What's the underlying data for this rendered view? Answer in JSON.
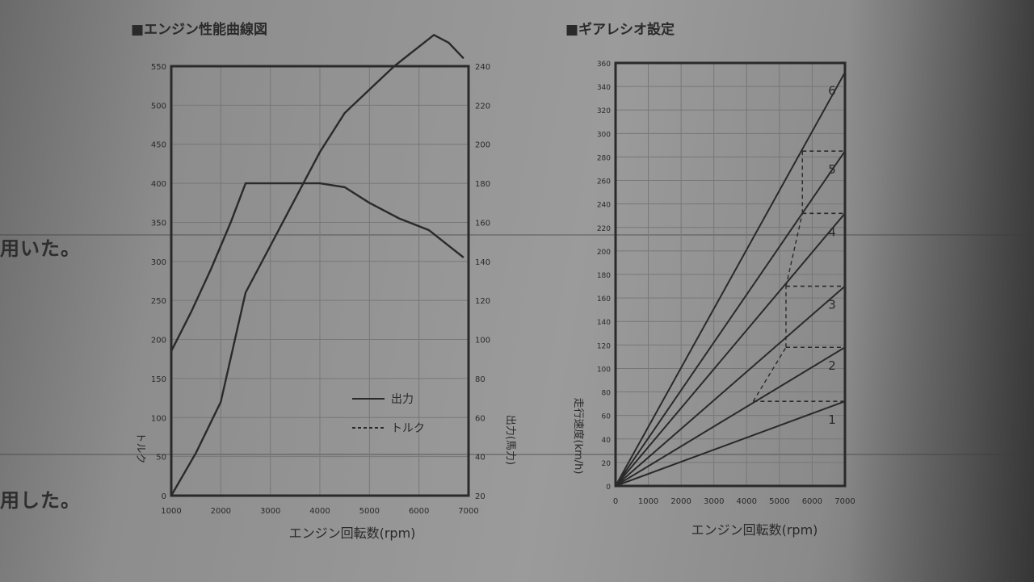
{
  "body_text": {
    "line1": "用いた。",
    "line2": "用した。"
  },
  "chart_data": [
    {
      "type": "line",
      "title": "■エンジン性能曲線図",
      "xlabel": "エンジン回転数(rpm)",
      "x_ticks": [
        "1000",
        "2000",
        "3000",
        "4000",
        "5000",
        "6000",
        "7000"
      ],
      "xlim": [
        1000,
        7000
      ],
      "y_left_ticks": [
        "0",
        "50",
        "100",
        "150",
        "200",
        "250",
        "300",
        "350",
        "400",
        "450",
        "500",
        "550"
      ],
      "ylim_left": [
        0,
        550
      ],
      "y_right_ticks": [
        "20",
        "40",
        "60",
        "80",
        "100",
        "120",
        "140",
        "160",
        "180",
        "200",
        "220",
        "240"
      ],
      "ylim_right": [
        20,
        240
      ],
      "ylabel_left": "トルク",
      "ylabel_right": "出力(馬力)",
      "grid": true,
      "legend_position": "bottom-right",
      "series": [
        {
          "name": "出力",
          "style": "solid",
          "axis": "left",
          "x": [
            1000,
            1500,
            2000,
            2500,
            3000,
            3500,
            4000,
            4500,
            5000,
            5500,
            6000,
            6300,
            6600,
            6900
          ],
          "y": [
            0,
            55,
            120,
            260,
            320,
            380,
            440,
            490,
            520,
            550,
            575,
            590,
            580,
            560
          ]
        },
        {
          "name": "トルク",
          "style": "dashed",
          "axis": "left",
          "x": [
            1000,
            1400,
            1800,
            2200,
            2500,
            3000,
            4000,
            4500,
            5000,
            5600,
            6200,
            6700,
            6900
          ],
          "y": [
            185,
            235,
            290,
            350,
            400,
            400,
            400,
            395,
            375,
            355,
            340,
            315,
            305
          ]
        }
      ]
    },
    {
      "type": "line",
      "title": "■ギアレシオ設定",
      "xlabel": "エンジン回転数(rpm)",
      "x_ticks": [
        "0",
        "1000",
        "2000",
        "3000",
        "4000",
        "5000",
        "6000",
        "7000"
      ],
      "xlim": [
        0,
        7000
      ],
      "y_ticks": [
        "0",
        "20",
        "40",
        "60",
        "80",
        "100",
        "120",
        "140",
        "160",
        "180",
        "200",
        "220",
        "240",
        "260",
        "280",
        "300",
        "320",
        "340",
        "360"
      ],
      "ylim": [
        0,
        360
      ],
      "ylabel": "走行速度(km/h)",
      "grid": true,
      "series": [
        {
          "name": "1",
          "x": [
            0,
            7000
          ],
          "y": [
            0,
            72
          ]
        },
        {
          "name": "2",
          "x": [
            0,
            7000
          ],
          "y": [
            0,
            118
          ]
        },
        {
          "name": "3",
          "x": [
            0,
            7000
          ],
          "y": [
            0,
            170
          ]
        },
        {
          "name": "4",
          "x": [
            0,
            7000
          ],
          "y": [
            0,
            232
          ]
        },
        {
          "name": "5",
          "x": [
            0,
            7000
          ],
          "y": [
            0,
            285
          ]
        },
        {
          "name": "6",
          "x": [
            0,
            7000
          ],
          "y": [
            0,
            352
          ]
        }
      ],
      "shift_steps": [
        {
          "from_x": 4200,
          "to_x": 7000,
          "y": 72
        },
        {
          "from_x": 5200,
          "to_x": 7000,
          "y": 118
        },
        {
          "from_x": 5200,
          "to_x": 7000,
          "y": 170
        },
        {
          "from_x": 5700,
          "to_x": 7000,
          "y": 232
        },
        {
          "from_x": 5700,
          "to_x": 7000,
          "y": 285
        }
      ]
    }
  ]
}
